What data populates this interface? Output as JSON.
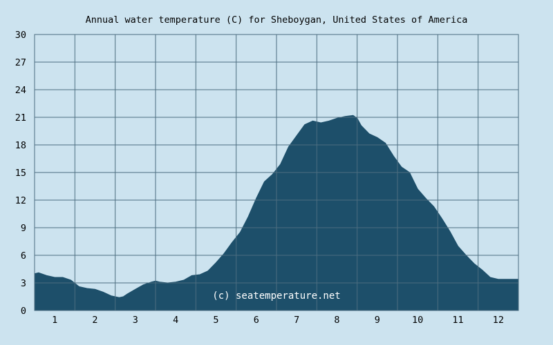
{
  "chart_data": {
    "type": "area",
    "title": "Annual water temperature (C) for Sheboygan, United States of America",
    "watermark": "(c) seatemperature.net",
    "xlabel": "",
    "ylabel": "",
    "x_ticks": [
      "1",
      "2",
      "3",
      "4",
      "5",
      "6",
      "7",
      "8",
      "9",
      "10",
      "11",
      "12"
    ],
    "y_ticks": [
      "0",
      "3",
      "6",
      "9",
      "12",
      "15",
      "18",
      "21",
      "24",
      "27",
      "30"
    ],
    "ylim": [
      0,
      30
    ],
    "xlim": [
      0.5,
      12.5
    ],
    "grid": true,
    "colors": {
      "background": "#cce3ef",
      "fill": "#1d4f6a",
      "grid": "#4d6e80"
    },
    "series": [
      {
        "x": [
          0.5,
          0.6,
          0.8,
          1.0,
          1.2,
          1.4,
          1.6,
          1.8,
          2.0,
          2.2,
          2.4,
          2.6,
          2.7,
          2.8,
          3.0,
          3.2,
          3.4,
          3.5,
          3.6,
          3.8,
          4.0,
          4.2,
          4.4,
          4.6,
          4.8,
          5.0,
          5.2,
          5.4,
          5.6,
          5.8,
          6.0,
          6.2,
          6.4,
          6.6,
          6.8,
          7.0,
          7.2,
          7.4,
          7.6,
          7.8,
          8.0,
          8.2,
          8.4,
          8.5,
          8.6,
          8.8,
          9.0,
          9.2,
          9.4,
          9.6,
          9.8,
          10.0,
          10.2,
          10.4,
          10.6,
          10.8,
          11.0,
          11.2,
          11.4,
          11.6,
          11.8,
          12.0,
          12.2,
          12.4,
          12.5
        ],
        "values": [
          4.0,
          4.1,
          3.8,
          3.6,
          3.6,
          3.3,
          2.6,
          2.4,
          2.3,
          2.0,
          1.6,
          1.4,
          1.5,
          1.8,
          2.3,
          2.8,
          3.1,
          3.2,
          3.1,
          3.0,
          3.1,
          3.3,
          3.8,
          3.9,
          4.3,
          5.2,
          6.2,
          7.4,
          8.5,
          10.2,
          12.2,
          14.0,
          14.8,
          15.9,
          17.8,
          19.0,
          20.2,
          20.6,
          20.4,
          20.6,
          20.9,
          21.1,
          21.2,
          20.9,
          20.1,
          19.2,
          18.8,
          18.2,
          16.8,
          15.6,
          15.0,
          13.2,
          12.2,
          11.3,
          10.0,
          8.6,
          7.0,
          6.0,
          5.1,
          4.4,
          3.6,
          3.4,
          3.4,
          3.4,
          3.4
        ]
      }
    ]
  }
}
